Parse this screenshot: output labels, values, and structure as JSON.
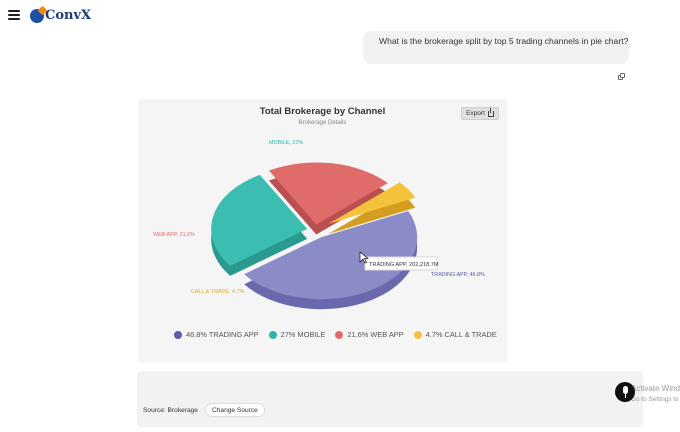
{
  "header": {
    "logo_text": "ConvX"
  },
  "chat": {
    "user_message": "What is the brokerage split by top 5 trading channels in pie chart?"
  },
  "chart_card": {
    "export_label": "Export"
  },
  "chart_data": {
    "type": "pie",
    "title": "Total Brokerage by Channel",
    "subtitle": "Brokerage Details",
    "slices": [
      {
        "name": "TRADING APP",
        "value": 46.8,
        "label": "TRADING APP, 46.8%",
        "legend": "46.8% TRADING APP",
        "color": "#8b8bc8"
      },
      {
        "name": "MOBILE",
        "value": 27,
        "label": "MOBILE, 27%",
        "legend": "27% MOBILE",
        "color": "#3bbdb1"
      },
      {
        "name": "WEB APP",
        "value": 21.6,
        "label": "WEB APP, 21.6%",
        "legend": "21.6% WEB APP",
        "color": "#e06b6b"
      },
      {
        "name": "CALL & TRADE",
        "value": 4.7,
        "label": "CALL & TRADE, 4.7%",
        "legend": "4.7% CALL & TRADE",
        "color": "#f5c33b"
      }
    ],
    "tooltip": "TRADING APP, 202,218.7M",
    "legend_position": "bottom"
  },
  "input_panel": {
    "source_label": "Source: Brokerage",
    "change_source_label": "Change Source"
  },
  "watermark": {
    "line1": "Activate Windows",
    "line2": "Go to Settings to activate Windows."
  },
  "colors": {
    "accent": "#1e3a7b",
    "bubble_bg": "#f2f2f2",
    "card_bg": "#f5f5f5"
  }
}
